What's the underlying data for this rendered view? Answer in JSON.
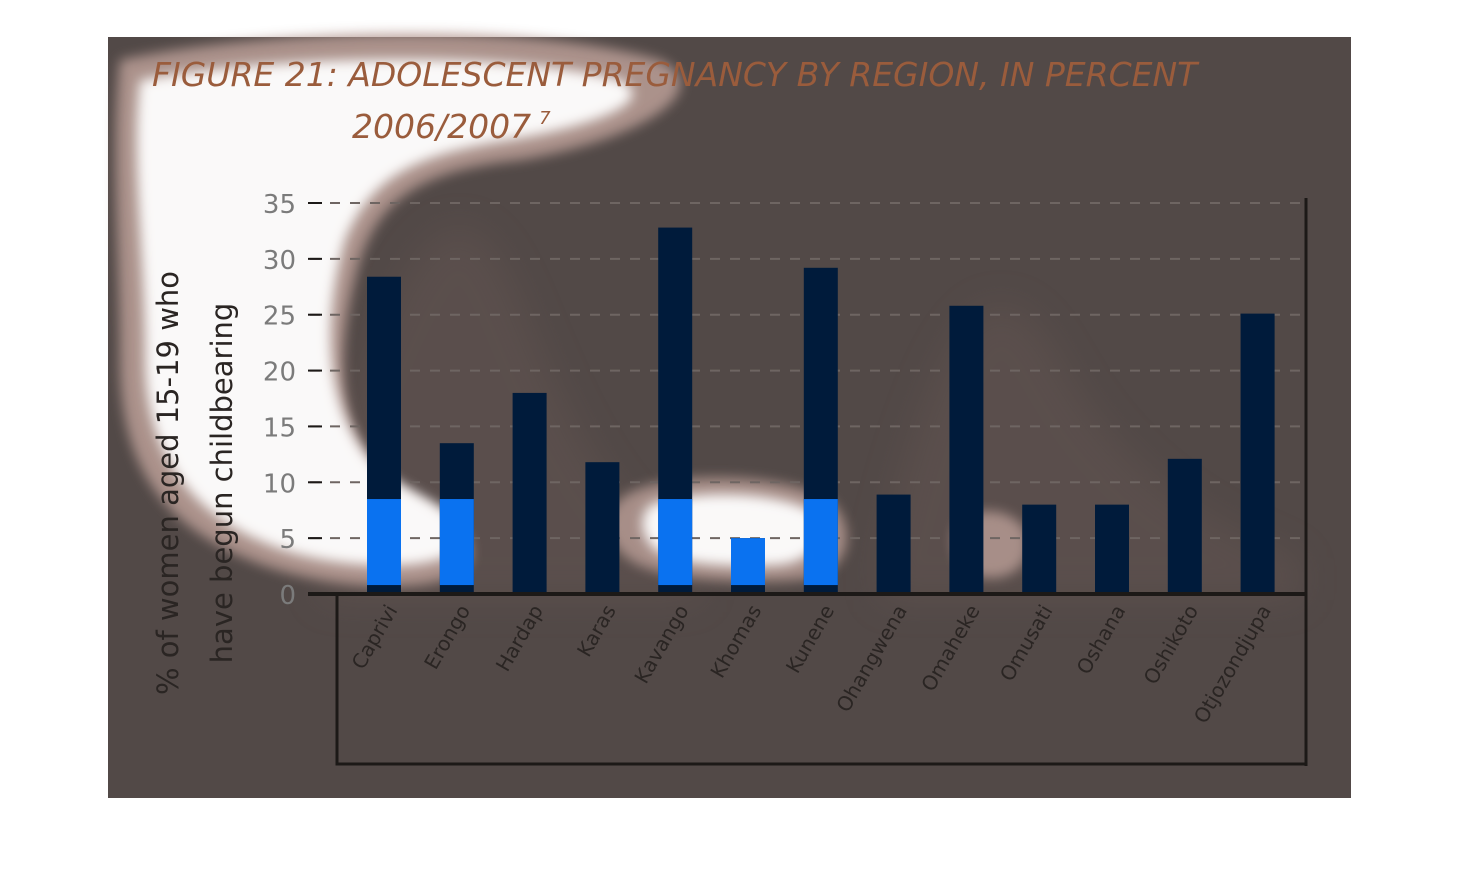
{
  "chart_data": {
    "type": "bar",
    "title": "FIGURE 21: ADOLESCENT PREGNANCY BY REGION, IN PERCENT",
    "subtitle": "2006/2007",
    "subtitle_sup": "7",
    "ylabel_line1": "% of women aged 15-19 who",
    "ylabel_line2": "have begun childbearing",
    "xlabel": "",
    "ylim": [
      0,
      35
    ],
    "yticks": [
      0,
      5,
      10,
      15,
      20,
      25,
      30,
      35
    ],
    "grid": true,
    "categories": [
      "Caprivi",
      "Erongo",
      "Hardap",
      "Karas",
      "Kavango",
      "Khomas",
      "Kunene",
      "Ohangwena",
      "Omaheke",
      "Omusati",
      "Oshana",
      "Oshikoto",
      "Otjozondjupa"
    ],
    "values": [
      28.4,
      13.5,
      18.0,
      11.8,
      32.8,
      5.0,
      29.2,
      8.9,
      25.8,
      8.0,
      8.0,
      12.1,
      25.1
    ],
    "colors": {
      "bar": "#001b3b",
      "highlight": "#0a72f0",
      "title": "#9a5c3c",
      "panel": "#524947"
    }
  }
}
